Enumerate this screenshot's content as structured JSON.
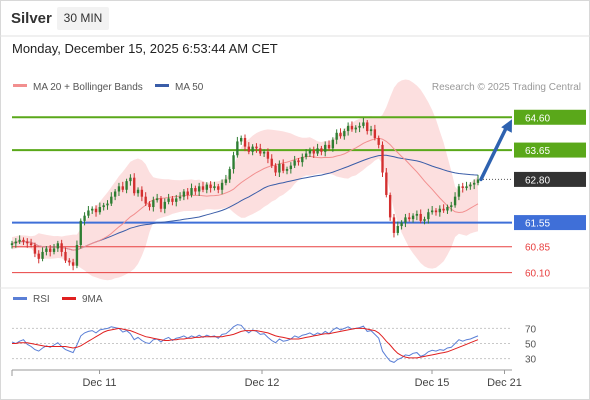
{
  "header": {
    "instrument": "Silver",
    "timeframe": "30 MIN",
    "timestamp": "Monday, December 15, 2025 6:53:44 AM CET"
  },
  "legend": {
    "ma20_label": "MA 20 + Bollinger Bands",
    "ma50_label": "MA 50",
    "credit": "Research © 2025 Trading Central"
  },
  "colors": {
    "ma20": "#f28f8f",
    "ma50": "#3a5da8",
    "band": "#fbd4d4",
    "resistance": "#5aa81a",
    "support": "#3f6fd8",
    "support_low": "#e84040",
    "candle_up": "#2e7d32",
    "candle_down": "#d32f2f",
    "price_tag": "#333333",
    "arrow": "#2e62b0",
    "rsi": "#5a7fd6",
    "rsi_ma": "#e02020"
  },
  "chart_data": [
    {
      "type": "candlestick",
      "x_ticks": [
        "Dec 11",
        "Dec 12",
        "Dec 15",
        "Dec 21"
      ],
      "ylim": [
        59.8,
        65.1
      ],
      "levels": [
        {
          "value": 64.6,
          "label": "64.60",
          "kind": "resistance"
        },
        {
          "value": 63.65,
          "label": "63.65",
          "kind": "resistance"
        },
        {
          "value": 61.55,
          "label": "61.55",
          "kind": "support"
        },
        {
          "value": 60.85,
          "label": "60.85",
          "kind": "support_low"
        },
        {
          "value": 60.1,
          "label": "60.10",
          "kind": "support_low"
        }
      ],
      "last_price": {
        "value": 62.8,
        "label": "62.80"
      },
      "close": [
        60.95,
        61.0,
        61.05,
        61.0,
        60.95,
        60.9,
        60.65,
        60.5,
        60.7,
        60.8,
        60.7,
        60.8,
        60.95,
        60.7,
        60.45,
        60.4,
        60.3,
        60.9,
        61.6,
        61.75,
        61.9,
        61.95,
        61.85,
        62.0,
        62.05,
        62.1,
        62.3,
        62.45,
        62.6,
        62.5,
        62.75,
        62.85,
        62.4,
        62.5,
        62.3,
        62.1,
        62.0,
        62.2,
        62.25,
        61.95,
        62.15,
        62.25,
        62.15,
        62.25,
        62.3,
        62.45,
        62.35,
        62.55,
        62.45,
        62.6,
        62.5,
        62.65,
        62.55,
        62.6,
        62.5,
        62.7,
        62.8,
        63.1,
        63.5,
        63.9,
        64.0,
        63.75,
        63.6,
        63.75,
        63.7,
        63.55,
        63.6,
        63.4,
        63.2,
        63.0,
        63.25,
        63.05,
        63.1,
        63.2,
        63.35,
        63.3,
        63.45,
        63.55,
        63.65,
        63.55,
        63.7,
        63.6,
        63.8,
        63.7,
        63.95,
        64.15,
        64.05,
        64.2,
        64.35,
        64.25,
        64.3,
        64.35,
        64.45,
        64.2,
        64.25,
        64.0,
        63.8,
        63.0,
        62.35,
        61.7,
        61.25,
        61.45,
        61.55,
        61.7,
        61.65,
        61.75,
        61.8,
        61.6,
        61.65,
        61.85,
        61.9,
        61.85,
        61.95,
        61.9,
        62.0,
        62.05,
        62.3,
        62.6,
        62.55,
        62.6,
        62.65,
        62.7,
        62.8
      ]
    },
    {
      "type": "line",
      "title": "RSI",
      "legend": [
        "RSI",
        "9MA"
      ],
      "y_ticks": [
        70,
        50,
        30
      ],
      "ylim": [
        15,
        85
      ],
      "series": [
        {
          "name": "RSI",
          "values": [
            52,
            50,
            53,
            55,
            49,
            46,
            42,
            40,
            44,
            47,
            45,
            48,
            51,
            46,
            42,
            40,
            38,
            48,
            60,
            64,
            66,
            67,
            64,
            68,
            69,
            70,
            72,
            71,
            70,
            65,
            67,
            63,
            55,
            58,
            54,
            51,
            50,
            55,
            56,
            52,
            56,
            58,
            54,
            57,
            58,
            60,
            57,
            60,
            58,
            61,
            58,
            61,
            59,
            60,
            57,
            62,
            63,
            67,
            72,
            75,
            74,
            68,
            64,
            68,
            66,
            62,
            63,
            58,
            54,
            51,
            56,
            53,
            54,
            56,
            60,
            58,
            61,
            62,
            64,
            61,
            64,
            62,
            66,
            63,
            68,
            71,
            68,
            70,
            72,
            69,
            70,
            71,
            73,
            66,
            67,
            62,
            57,
            40,
            33,
            27,
            25,
            29,
            31,
            35,
            34,
            37,
            38,
            33,
            35,
            39,
            41,
            40,
            42,
            41,
            44,
            45,
            50,
            55,
            53,
            55,
            56,
            58,
            60
          ]
        },
        {
          "name": "9MA",
          "values": [
            50,
            50,
            51,
            51,
            51,
            50,
            49,
            48,
            47,
            46,
            46,
            46,
            46,
            46,
            46,
            45,
            44,
            45,
            47,
            50,
            53,
            56,
            59,
            62,
            65,
            67,
            68,
            69,
            70,
            69,
            68,
            67,
            65,
            63,
            61,
            59,
            58,
            57,
            56,
            55,
            54,
            54,
            55,
            55,
            56,
            56,
            57,
            57,
            58,
            58,
            59,
            59,
            59,
            59,
            59,
            59,
            60,
            61,
            62,
            64,
            66,
            67,
            67,
            67,
            67,
            66,
            65,
            64,
            62,
            60,
            59,
            58,
            57,
            56,
            56,
            56,
            57,
            58,
            59,
            60,
            61,
            62,
            63,
            63,
            64,
            65,
            66,
            67,
            68,
            69,
            70,
            70,
            70,
            69,
            68,
            67,
            64,
            59,
            53,
            48,
            42,
            37,
            34,
            32,
            31,
            31,
            31,
            32,
            33,
            34,
            35,
            36,
            37,
            38,
            39,
            41,
            43,
            45,
            47,
            49,
            51,
            53,
            55
          ]
        }
      ]
    }
  ]
}
